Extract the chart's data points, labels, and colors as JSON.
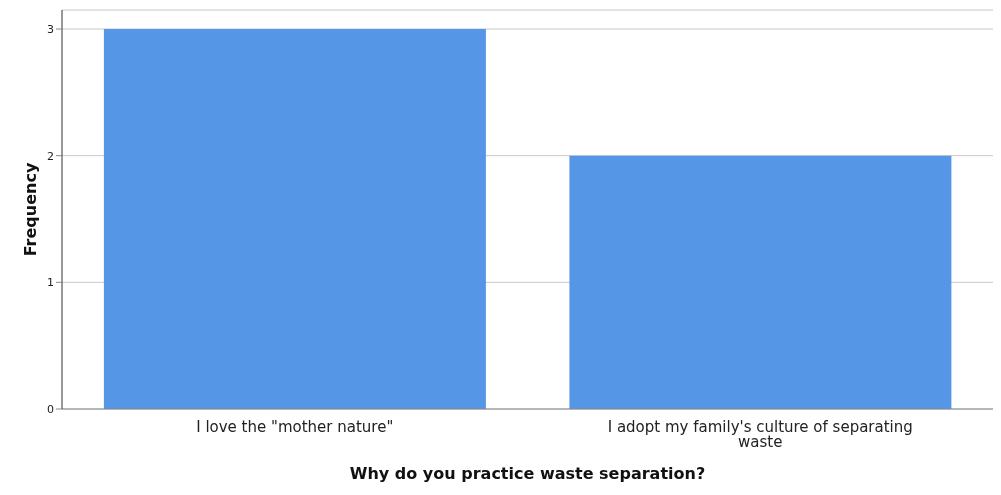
{
  "chart_data": {
    "type": "bar",
    "xlabel": "Why do you practice waste separation?",
    "ylabel": "Frequency",
    "categories": [
      "I love the \"mother nature\"",
      "I adopt my family's culture of separating waste"
    ],
    "values": [
      3,
      2
    ],
    "color": "#5596e6",
    "ylim": [
      0,
      3.15
    ],
    "yticks": [
      0,
      1,
      2,
      3
    ],
    "grid": "y"
  }
}
